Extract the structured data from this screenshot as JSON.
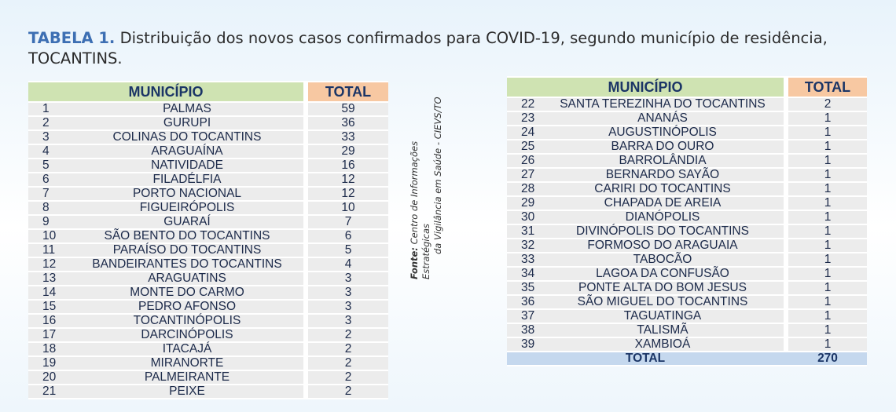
{
  "title": {
    "label": "TABELA 1.",
    "text": "Distribuição dos novos casos confirmados para COVID-19, segundo município de residência, TOCANTINS."
  },
  "source": {
    "label": "Fonte:",
    "line1": "Centro de Informações Estratégicas",
    "line2": "da Vigilância em Saúde - CIEVS/TO"
  },
  "left_table": {
    "header_municipio": "MUNICÍPIO",
    "header_total": "TOTAL",
    "rows": [
      {
        "n": "1",
        "name": "PALMAS",
        "total": "59"
      },
      {
        "n": "2",
        "name": "GURUPI",
        "total": "36"
      },
      {
        "n": "3",
        "name": "COLINAS DO TOCANTINS",
        "total": "33"
      },
      {
        "n": "4",
        "name": "ARAGUAÍNA",
        "total": "29"
      },
      {
        "n": "5",
        "name": "NATIVIDADE",
        "total": "16"
      },
      {
        "n": "6",
        "name": "FILADÉLFIA",
        "total": "12"
      },
      {
        "n": "7",
        "name": "PORTO NACIONAL",
        "total": "12"
      },
      {
        "n": "8",
        "name": "FIGUEIRÓPOLIS",
        "total": "10"
      },
      {
        "n": "9",
        "name": "GUARAÍ",
        "total": "7"
      },
      {
        "n": "10",
        "name": "SÃO BENTO DO TOCANTINS",
        "total": "6"
      },
      {
        "n": "11",
        "name": "PARAÍSO DO TOCANTINS",
        "total": "5"
      },
      {
        "n": "12",
        "name": "BANDEIRANTES DO TOCANTINS",
        "total": "4"
      },
      {
        "n": "13",
        "name": "ARAGUATINS",
        "total": "3"
      },
      {
        "n": "14",
        "name": "MONTE DO CARMO",
        "total": "3"
      },
      {
        "n": "15",
        "name": "PEDRO AFONSO",
        "total": "3"
      },
      {
        "n": "16",
        "name": "TOCANTINÓPOLIS",
        "total": "3"
      },
      {
        "n": "17",
        "name": "DARCINÓPOLIS",
        "total": "2"
      },
      {
        "n": "18",
        "name": "ITACAJÁ",
        "total": "2"
      },
      {
        "n": "19",
        "name": "MIRANORTE",
        "total": "2"
      },
      {
        "n": "20",
        "name": "PALMEIRANTE",
        "total": "2"
      },
      {
        "n": "21",
        "name": "PEIXE",
        "total": "2"
      }
    ]
  },
  "right_table": {
    "header_municipio": "MUNICÍPIO",
    "header_total": "TOTAL",
    "rows": [
      {
        "n": "22",
        "name": "SANTA TEREZINHA DO TOCANTINS",
        "total": "2"
      },
      {
        "n": "23",
        "name": "ANANÁS",
        "total": "1"
      },
      {
        "n": "24",
        "name": "AUGUSTINÓPOLIS",
        "total": "1"
      },
      {
        "n": "25",
        "name": "BARRA DO OURO",
        "total": "1"
      },
      {
        "n": "26",
        "name": "BARROLÂNDIA",
        "total": "1"
      },
      {
        "n": "27",
        "name": "BERNARDO SAYÃO",
        "total": "1"
      },
      {
        "n": "28",
        "name": "CARIRI DO TOCANTINS",
        "total": "1"
      },
      {
        "n": "29",
        "name": "CHAPADA DE AREIA",
        "total": "1"
      },
      {
        "n": "30",
        "name": "DIANÓPOLIS",
        "total": "1"
      },
      {
        "n": "31",
        "name": "DIVINÓPOLIS DO TOCANTINS",
        "total": "1"
      },
      {
        "n": "32",
        "name": "FORMOSO DO ARAGUAIA",
        "total": "1"
      },
      {
        "n": "33",
        "name": "TABOCÃO",
        "total": "1"
      },
      {
        "n": "34",
        "name": "LAGOA DA CONFUSÃO",
        "total": "1"
      },
      {
        "n": "35",
        "name": "PONTE ALTA DO BOM JESUS",
        "total": "1"
      },
      {
        "n": "36",
        "name": "SÃO MIGUEL DO TOCANTINS",
        "total": "1"
      },
      {
        "n": "37",
        "name": "TAGUATINGA",
        "total": "1"
      },
      {
        "n": "38",
        "name": "TALISMÃ",
        "total": "1"
      },
      {
        "n": "39",
        "name": "XAMBIOÁ",
        "total": "1"
      }
    ],
    "total_label": "TOTAL",
    "total_value": "270"
  }
}
